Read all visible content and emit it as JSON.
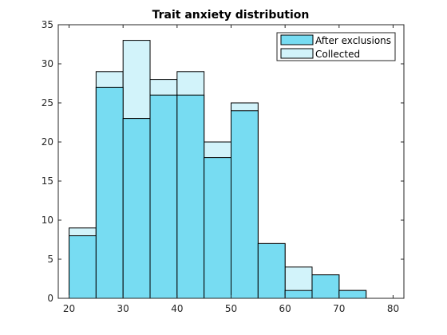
{
  "chart_data": {
    "type": "bar",
    "title": "Trait anxiety distribution",
    "xlabel": "",
    "ylabel": "",
    "bin_edges": [
      20,
      25,
      30,
      35,
      40,
      45,
      50,
      55,
      60,
      65,
      70,
      75,
      80
    ],
    "xlim": [
      18,
      82
    ],
    "ylim": [
      0,
      35
    ],
    "xticks": [
      20,
      30,
      40,
      50,
      60,
      70,
      80
    ],
    "yticks": [
      0,
      5,
      10,
      15,
      20,
      25,
      30,
      35
    ],
    "series": [
      {
        "name": "Collected",
        "color": "#d2f3fa",
        "values": [
          9,
          29,
          33,
          28,
          29,
          20,
          25,
          7,
          4,
          3,
          1,
          0
        ]
      },
      {
        "name": "After exclusions",
        "color": "#77dcf2",
        "values": [
          8,
          27,
          23,
          26,
          26,
          18,
          24,
          7,
          1,
          3,
          1,
          0
        ]
      }
    ],
    "legend": {
      "location": "top-right",
      "entries": [
        "After exclusions",
        "Collected"
      ]
    },
    "grid": false
  }
}
